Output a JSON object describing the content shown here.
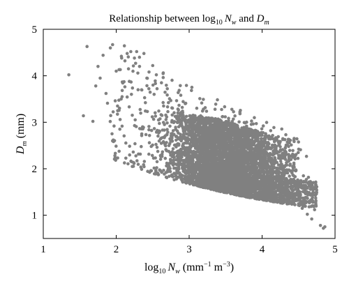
{
  "chart_data": {
    "type": "scatter",
    "title": {
      "prefix": "Relationship between log",
      "sub": "10",
      "var": "N",
      "var_sub": "w",
      "mid": " and ",
      "var2": "D",
      "var2_sub": "m"
    },
    "xlabel": {
      "prefix": "log",
      "sub": "10",
      "var": "N",
      "var_sub": "w",
      "unit_open": " (mm",
      "unit_exp1": "−1",
      "unit_mid": " m",
      "unit_exp2": "−3",
      "unit_close": ")"
    },
    "ylabel": {
      "var": "D",
      "var_sub": "m",
      "unit": " (mm)"
    },
    "xlim": [
      1,
      5
    ],
    "ylim": [
      0.5,
      5
    ],
    "xticks": [
      "1",
      "2",
      "3",
      "4",
      "5"
    ],
    "yticks": [
      "1",
      "2",
      "3",
      "4",
      "5"
    ],
    "grid": false,
    "marker_color": "#808080",
    "series": [
      {
        "values": [
          [
            1.35,
            4.02
          ],
          [
            1.55,
            3.14
          ],
          [
            1.6,
            4.63
          ],
          [
            1.68,
            3.02
          ],
          [
            1.72,
            3.78
          ],
          [
            1.75,
            4.2
          ],
          [
            1.78,
            3.95
          ],
          [
            1.82,
            4.44
          ],
          [
            1.86,
            3.62
          ],
          [
            1.88,
            3.41
          ],
          [
            1.92,
            4.6
          ],
          [
            1.95,
            4.67
          ],
          [
            1.97,
            2.92
          ],
          [
            2.0,
            4.1
          ],
          [
            2.02,
            3.25
          ],
          [
            1.95,
            2.6
          ],
          [
            2.05,
            2.85
          ],
          [
            2.08,
            3.55
          ],
          [
            2.12,
            4.32
          ],
          [
            2.15,
            4.48
          ],
          [
            2.18,
            3.88
          ],
          [
            2.2,
            4.52
          ],
          [
            2.22,
            3.15
          ],
          [
            2.25,
            4.38
          ],
          [
            2.28,
            4.52
          ],
          [
            2.3,
            3.7
          ],
          [
            2.32,
            4.2
          ],
          [
            2.35,
            2.75
          ],
          [
            2.38,
            4.48
          ],
          [
            2.4,
            3.42
          ],
          [
            2.42,
            3.95
          ],
          [
            2.45,
            4.08
          ],
          [
            2.48,
            2.48
          ],
          [
            2.5,
            4.22
          ],
          [
            2.52,
            3.6
          ],
          [
            2.55,
            4.02
          ],
          [
            2.58,
            3.05
          ],
          [
            2.62,
            3.85
          ],
          [
            2.65,
            3.35
          ],
          [
            2.7,
            3.72
          ],
          [
            4.42,
            2.05
          ],
          [
            4.5,
            1.6
          ],
          [
            4.55,
            1.15
          ],
          [
            4.62,
            1.02
          ],
          [
            4.68,
            0.92
          ],
          [
            4.72,
            1.12
          ],
          [
            4.8,
            0.78
          ],
          [
            4.84,
            0.72
          ],
          [
            4.86,
            0.75
          ]
        ]
      }
    ]
  }
}
